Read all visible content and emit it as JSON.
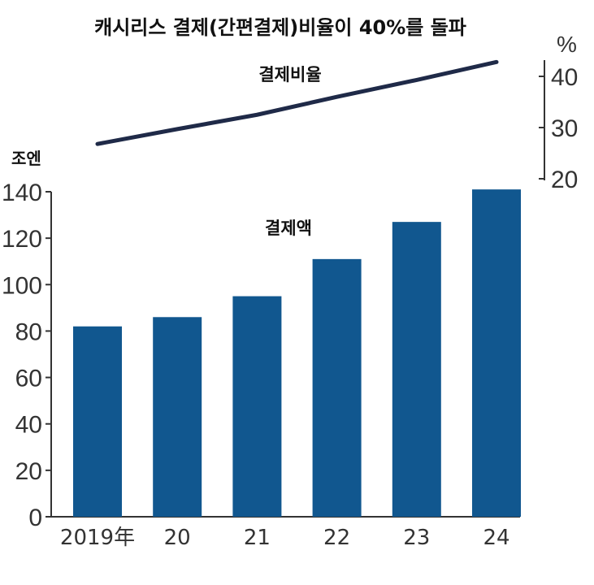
{
  "chart_data": {
    "title": "캐시리스 결제(간편결제)비율이 40%를 돌파",
    "categories": [
      "2019年",
      "20",
      "21",
      "22",
      "23",
      "24"
    ],
    "series": [
      {
        "name": "결제액",
        "type": "bar",
        "axis": "left",
        "values": [
          82,
          86,
          95,
          111,
          127,
          141
        ]
      },
      {
        "name": "결제비율",
        "type": "line",
        "axis": "right",
        "values": [
          26.8,
          29.7,
          32.5,
          36.0,
          39.3,
          42.8
        ]
      }
    ],
    "left_axis": {
      "unit": "조엔",
      "range": [
        0,
        140
      ],
      "ticks": [
        0,
        20,
        40,
        60,
        80,
        100,
        120,
        140
      ]
    },
    "right_axis": {
      "unit": "%",
      "range": [
        20,
        40
      ],
      "ticks": [
        20,
        30,
        40
      ]
    },
    "colors": {
      "bar": "#11578f",
      "line": "#1f2a48"
    },
    "grid": false
  }
}
